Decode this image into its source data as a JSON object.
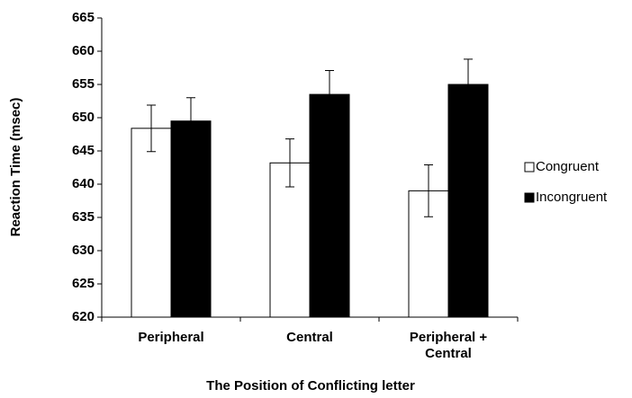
{
  "chart_data": {
    "type": "bar",
    "x_label": "The Position of Conflicting letter",
    "y_label": "Reaction Time (msec)",
    "categories": [
      "Peripheral",
      "Central",
      "Peripheral + Central"
    ],
    "series": [
      {
        "name": "Congruent",
        "color": "#ffffff",
        "values": [
          648.4,
          643.2,
          639.0
        ],
        "errors": [
          3.5,
          3.6,
          3.9
        ]
      },
      {
        "name": "Incongruent",
        "color": "#000000",
        "values": [
          649.5,
          653.5,
          655.0
        ],
        "errors": [
          3.5,
          3.6,
          3.8
        ]
      }
    ],
    "ylim": [
      620,
      665
    ],
    "yticks": [
      620,
      625,
      630,
      635,
      640,
      645,
      650,
      655,
      660,
      665
    ],
    "grid": false,
    "legend": "right"
  }
}
